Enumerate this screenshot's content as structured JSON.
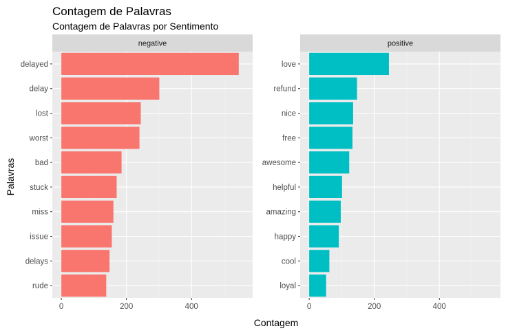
{
  "chart_data": {
    "type": "bar",
    "orientation": "horizontal",
    "title": "Contagem de Palavras",
    "subtitle": "Contagem de Palavras por Sentimento",
    "xlabel": "Contagem",
    "ylabel": "Palavras",
    "xlim": [
      0,
      560
    ],
    "x_ticks": [
      0,
      200,
      400
    ],
    "grid": true,
    "facets": [
      {
        "name": "negative",
        "color": "#F8766D",
        "categories": [
          "delayed",
          "delay",
          "lost",
          "worst",
          "bad",
          "stuck",
          "miss",
          "issue",
          "delays",
          "rude"
        ],
        "values": [
          545,
          301,
          244,
          240,
          185,
          170,
          160,
          155,
          148,
          138
        ]
      },
      {
        "name": "positive",
        "color": "#00BFC4",
        "categories": [
          "love",
          "refund",
          "nice",
          "free",
          "awesome",
          "helpful",
          "amazing",
          "happy",
          "cool",
          "loyal"
        ],
        "values": [
          245,
          147,
          135,
          133,
          123,
          101,
          97,
          91,
          62,
          52
        ]
      }
    ]
  }
}
